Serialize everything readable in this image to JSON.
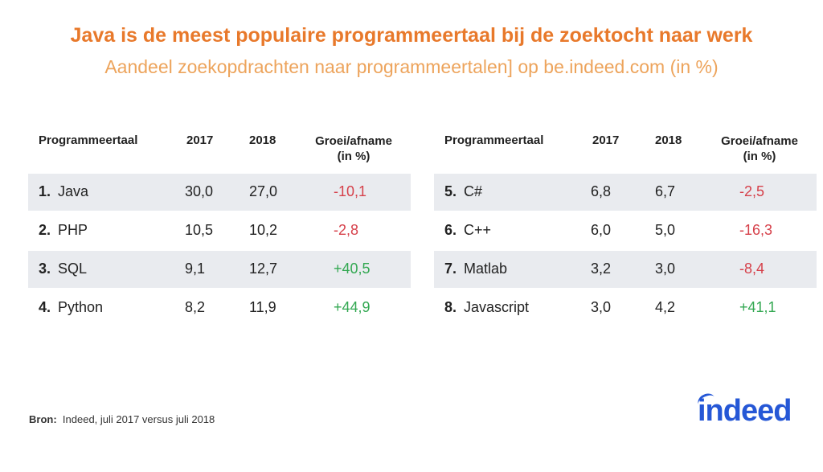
{
  "title": "Java is de meest populaire programmeertaal bij de zoektocht naar werk",
  "subtitle": "Aandeel zoekopdrachten naar programmeertalen] op be.indeed.com (in %)",
  "chart_data": {
    "type": "table",
    "columns": [
      "Programmeertaal",
      "2017",
      "2018",
      "Groei/afname",
      "(in %)"
    ],
    "tables": [
      {
        "rows": [
          {
            "rank": "1.",
            "name": "Java",
            "y2017": "30,0",
            "y2018": "27,0",
            "change": "-10,1"
          },
          {
            "rank": "2.",
            "name": "PHP",
            "y2017": "10,5",
            "y2018": "10,2",
            "change": "-2,8"
          },
          {
            "rank": "3.",
            "name": "SQL",
            "y2017": "9,1",
            "y2018": "12,7",
            "change": "+40,5"
          },
          {
            "rank": "4.",
            "name": "Python",
            "y2017": "8,2",
            "y2018": "11,9",
            "change": "+44,9"
          }
        ]
      },
      {
        "rows": [
          {
            "rank": "5.",
            "name": "C#",
            "y2017": "6,8",
            "y2018": "6,7",
            "change": "-2,5"
          },
          {
            "rank": "6.",
            "name": "C++",
            "y2017": "6,0",
            "y2018": "5,0",
            "change": "-16,3"
          },
          {
            "rank": "7.",
            "name": "Matlab",
            "y2017": "3,2",
            "y2018": "3,0",
            "change": "-8,4"
          },
          {
            "rank": "8.",
            "name": "Javascript",
            "y2017": "3,0",
            "y2018": "4,2",
            "change": "+41,1"
          }
        ]
      }
    ],
    "colors": {
      "negative": "#d6404a",
      "positive": "#33a852",
      "row_shade": "#e9ebef"
    }
  },
  "source": {
    "label": "Bron:",
    "text": "Indeed, juli 2017 versus juli 2018"
  },
  "logo": {
    "text": "indeed",
    "color": "#2557d6"
  }
}
